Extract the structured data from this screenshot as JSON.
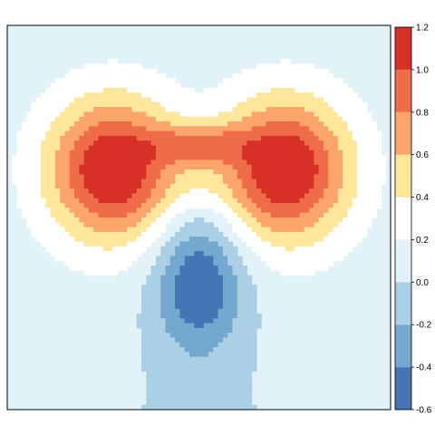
{
  "chart_data": {
    "type": "heatmap",
    "title": "",
    "xlabel": "",
    "ylabel": "",
    "grid": false,
    "legend_placement": "right",
    "colorbar": {
      "levels": [
        -0.6,
        -0.4,
        -0.2,
        0.0,
        0.2,
        0.4,
        0.6,
        0.8,
        1.0,
        1.2
      ],
      "tick_labels": [
        "-0.6",
        "-0.4",
        "-0.2",
        "0.0",
        "0.2",
        "0.4",
        "0.6",
        "0.8",
        "1.0",
        "1.2"
      ],
      "colors": [
        "#4575b4",
        "#74a9cf",
        "#abd0e6",
        "#e1f3f8",
        "#ffffff",
        "#fee79b",
        "#fca56b",
        "#ef6c49",
        "#d73027"
      ]
    },
    "peaks": [
      {
        "x": -0.45,
        "y": 0.25,
        "value": 1.15
      },
      {
        "x": 0.45,
        "y": 0.25,
        "value": 1.15
      }
    ],
    "trough": {
      "x": 0.0,
      "y": -0.35,
      "value": -0.55
    }
  }
}
